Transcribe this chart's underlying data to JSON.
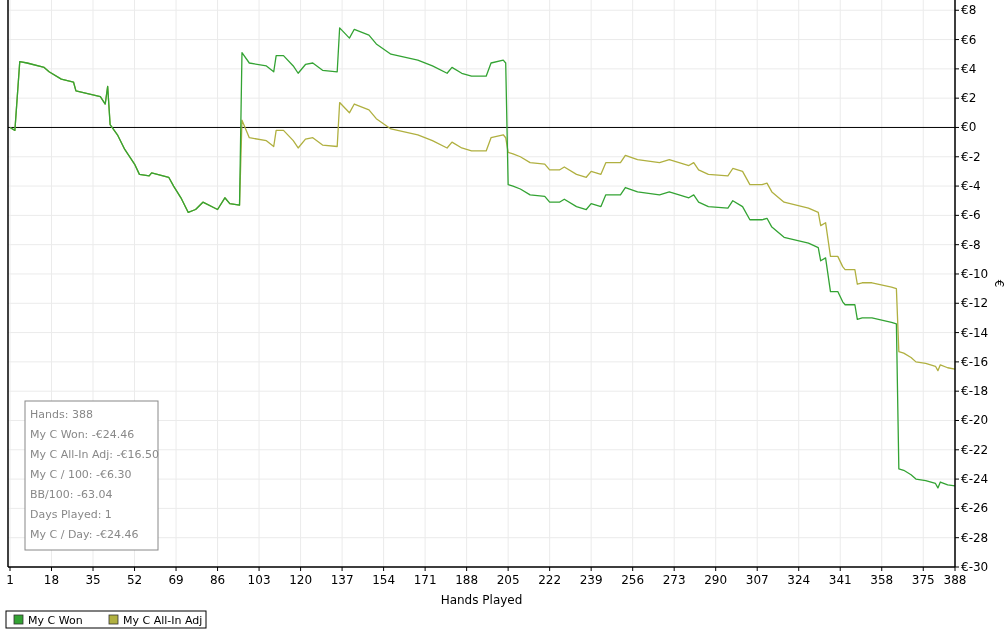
{
  "chart_data": {
    "type": "line",
    "xlabel": "Hands Played",
    "ylabel": "€",
    "grid": true,
    "legend": "bottom left",
    "line_style": "solid",
    "xlim": [
      1,
      388
    ],
    "xticks": [
      1,
      18,
      35,
      52,
      69,
      86,
      103,
      120,
      137,
      154,
      171,
      188,
      205,
      222,
      239,
      256,
      273,
      290,
      307,
      324,
      341,
      358,
      375,
      388
    ],
    "ylim": [
      -30,
      8.7
    ],
    "yticks": [
      {
        "value": 8,
        "label": "€8"
      },
      {
        "value": 6,
        "label": "€6"
      },
      {
        "value": 4,
        "label": "€4"
      },
      {
        "value": 2,
        "label": "€2"
      },
      {
        "value": 0,
        "label": "€0"
      },
      {
        "value": -2,
        "label": "€-2"
      },
      {
        "value": -4,
        "label": "€-4"
      },
      {
        "value": -6,
        "label": "€-6"
      },
      {
        "value": -8,
        "label": "€-8"
      },
      {
        "value": -10,
        "label": "€-10"
      },
      {
        "value": -12,
        "label": "€-12"
      },
      {
        "value": -14,
        "label": "€-14"
      },
      {
        "value": -16,
        "label": "€-16"
      },
      {
        "value": -18,
        "label": "€-18"
      },
      {
        "value": -20,
        "label": "€-20"
      },
      {
        "value": -22,
        "label": "€-22"
      },
      {
        "value": -24,
        "label": "€-24"
      },
      {
        "value": -26,
        "label": "€-26"
      },
      {
        "value": -28,
        "label": "€-28"
      },
      {
        "value": -30,
        "label": "€-30"
      }
    ],
    "ref_lines": [
      {
        "axis": "y",
        "value": 0,
        "label": null,
        "color": "#000000"
      }
    ],
    "annotations": [
      "Hands: 388",
      "My C Won: -€24.46",
      "My C All-In Adj: -€16.50",
      "My C / 100: -€6.30",
      "BB/100: -63.04",
      "Days Played: 1",
      "My C / Day: -€24.46"
    ],
    "x": [
      1,
      3,
      5,
      8,
      15,
      17,
      22,
      27,
      28,
      38,
      40,
      41,
      42,
      45,
      48,
      52,
      54,
      58,
      59,
      66,
      68,
      71,
      74,
      77,
      80,
      86,
      89,
      91,
      95,
      96,
      99,
      106,
      109,
      110,
      113,
      117,
      119,
      122,
      125,
      129,
      135,
      136,
      140,
      142,
      148,
      151,
      157,
      168,
      174,
      180,
      182,
      186,
      190,
      196,
      198,
      203,
      204,
      205,
      207,
      210,
      214,
      220,
      222,
      226,
      228,
      233,
      237,
      239,
      243,
      245,
      251,
      253,
      258,
      267,
      271,
      279,
      281,
      283,
      287,
      295,
      297,
      301,
      304,
      309,
      311,
      313,
      318,
      328,
      332,
      333,
      335,
      337,
      340,
      342,
      343,
      347,
      348,
      350,
      354,
      362,
      364,
      365,
      367,
      370,
      372,
      376,
      380,
      381,
      382,
      385,
      388
    ],
    "series": [
      {
        "name": "My C Won",
        "color": "#33a333",
        "values": [
          0,
          -0.2,
          4.5,
          4.4,
          4.1,
          3.8,
          3.3,
          3.1,
          2.5,
          2.1,
          1.6,
          2.8,
          0.2,
          -0.5,
          -1.5,
          -2.5,
          -3.2,
          -3.3,
          -3.1,
          -3.4,
          -4.0,
          -4.8,
          -5.8,
          -5.6,
          -5.1,
          -5.6,
          -4.8,
          -5.2,
          -5.3,
          5.1,
          4.4,
          4.2,
          3.8,
          4.9,
          4.9,
          4.2,
          3.7,
          4.3,
          4.4,
          3.9,
          3.8,
          6.8,
          6.1,
          6.7,
          6.3,
          5.7,
          5.0,
          4.6,
          4.2,
          3.7,
          4.1,
          3.7,
          3.5,
          3.5,
          4.4,
          4.6,
          4.4,
          -3.9,
          -4.0,
          -4.2,
          -4.6,
          -4.7,
          -5.1,
          -5.1,
          -4.9,
          -5.4,
          -5.6,
          -5.2,
          -5.4,
          -4.6,
          -4.6,
          -4.1,
          -4.4,
          -4.6,
          -4.4,
          -4.8,
          -4.6,
          -5.1,
          -5.4,
          -5.5,
          -5.0,
          -5.4,
          -6.3,
          -6.3,
          -6.2,
          -6.8,
          -7.5,
          -7.9,
          -8.2,
          -9.1,
          -8.9,
          -11.2,
          -11.2,
          -11.9,
          -12.1,
          -12.1,
          -13.1,
          -13.0,
          -13.0,
          -13.3,
          -13.4,
          -23.3,
          -23.4,
          -23.7,
          -24.0,
          -24.1,
          -24.3,
          -24.6,
          -24.2,
          -24.4,
          -24.46
        ]
      },
      {
        "name": "My C All-In Adj",
        "color": "#b0b040",
        "values": [
          0,
          -0.2,
          4.5,
          4.4,
          4.1,
          3.8,
          3.3,
          3.1,
          2.5,
          2.1,
          1.6,
          2.8,
          0.2,
          -0.5,
          -1.5,
          -2.5,
          -3.2,
          -3.3,
          -3.1,
          -3.4,
          -4.0,
          -4.8,
          -5.8,
          -5.6,
          -5.1,
          -5.6,
          -4.8,
          -5.2,
          -5.3,
          0.5,
          -0.7,
          -0.9,
          -1.3,
          -0.2,
          -0.2,
          -0.9,
          -1.4,
          -0.8,
          -0.7,
          -1.2,
          -1.3,
          1.7,
          1.0,
          1.6,
          1.2,
          0.6,
          -0.1,
          -0.5,
          -0.9,
          -1.4,
          -1.0,
          -1.4,
          -1.6,
          -1.6,
          -0.7,
          -0.5,
          -0.7,
          -1.7,
          -1.8,
          -2.0,
          -2.4,
          -2.5,
          -2.9,
          -2.9,
          -2.7,
          -3.2,
          -3.4,
          -3.0,
          -3.2,
          -2.4,
          -2.4,
          -1.9,
          -2.2,
          -2.4,
          -2.2,
          -2.6,
          -2.4,
          -2.9,
          -3.2,
          -3.3,
          -2.8,
          -3.0,
          -3.9,
          -3.9,
          -3.8,
          -4.4,
          -5.1,
          -5.5,
          -5.8,
          -6.7,
          -6.5,
          -8.8,
          -8.8,
          -9.5,
          -9.7,
          -9.7,
          -10.7,
          -10.6,
          -10.6,
          -10.9,
          -11.0,
          -15.3,
          -15.4,
          -15.7,
          -16.0,
          -16.1,
          -16.3,
          -16.6,
          -16.2,
          -16.4,
          -16.5
        ]
      }
    ]
  }
}
